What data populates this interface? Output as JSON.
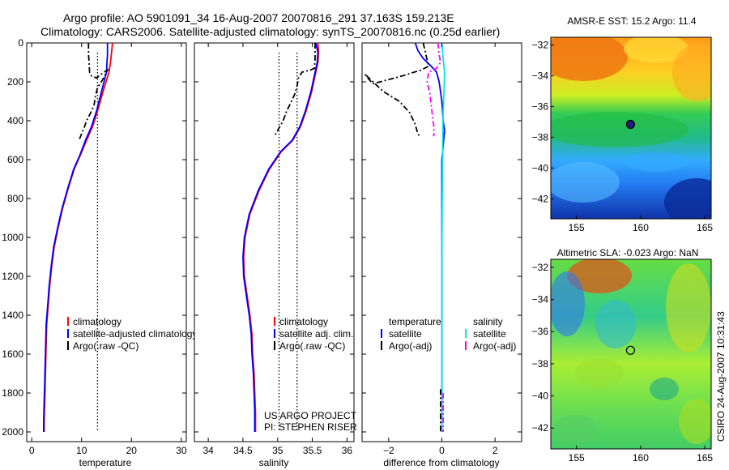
{
  "figure": {
    "title_line1": "Argo profile: AO 5901091_34 16-Aug-2007 20070816_291 37.163S 159.213E",
    "title_line2": "Climatology: CARS2006. Satellite-adjusted climatology: synTS_20070816.nc (0.25d earlier)",
    "side_label": "CSIRO 24-Aug-2007 10:31:43",
    "project_line1": "US ARGO PROJECT",
    "project_line2": "PI: STEPHEN RISER"
  },
  "colors": {
    "climatology": "#ff0000",
    "satellite": "#0000ff",
    "argo": "#000000",
    "sat_salinity": "#00e5ee",
    "argo_salinity": "#ff00ff"
  },
  "chart_data": [
    {
      "type": "line",
      "name": "temperature-profile",
      "xlabel": "temperature",
      "xlim": [
        -1,
        31
      ],
      "ylim": [
        2050,
        0
      ],
      "xticks": [
        0,
        10,
        20,
        30
      ],
      "yticks": [
        0,
        200,
        400,
        600,
        800,
        1000,
        1200,
        1400,
        1600,
        1800,
        2000
      ],
      "legend": [
        "climatology",
        "satellite-adjusted climatology",
        "Argo(.raw -QC)"
      ],
      "reference_line_x": 13.2,
      "series": [
        {
          "name": "climatology",
          "style": "solid",
          "color": "#ff0000",
          "points": [
            [
              16.2,
              0
            ],
            [
              16.0,
              50
            ],
            [
              15.8,
              100
            ],
            [
              15.5,
              150
            ],
            [
              14.3,
              250
            ],
            [
              13.2,
              350
            ],
            [
              12.2,
              430
            ],
            [
              11.0,
              500
            ],
            [
              9.7,
              580
            ],
            [
              8.5,
              650
            ],
            [
              7.3,
              750
            ],
            [
              6.2,
              850
            ],
            [
              5.3,
              950
            ],
            [
              4.5,
              1050
            ],
            [
              4.0,
              1150
            ],
            [
              3.6,
              1250
            ],
            [
              3.3,
              1350
            ],
            [
              3.0,
              1450
            ],
            [
              2.9,
              1550
            ],
            [
              2.8,
              1650
            ],
            [
              2.7,
              1750
            ],
            [
              2.6,
              1850
            ],
            [
              2.5,
              1950
            ],
            [
              2.5,
              2000
            ]
          ]
        },
        {
          "name": "satellite-adjusted climatology",
          "style": "solid",
          "color": "#0000ff",
          "points": [
            [
              15.2,
              0
            ],
            [
              15.2,
              60
            ],
            [
              15.1,
              100
            ],
            [
              15.0,
              150
            ],
            [
              14.0,
              250
            ],
            [
              13.0,
              350
            ],
            [
              12.0,
              430
            ],
            [
              10.8,
              500
            ],
            [
              9.6,
              580
            ],
            [
              8.4,
              650
            ],
            [
              7.2,
              750
            ],
            [
              6.1,
              850
            ],
            [
              5.2,
              950
            ],
            [
              4.4,
              1050
            ],
            [
              3.9,
              1150
            ],
            [
              3.5,
              1250
            ],
            [
              3.2,
              1350
            ],
            [
              2.9,
              1450
            ],
            [
              2.8,
              1550
            ],
            [
              2.7,
              1650
            ],
            [
              2.6,
              1750
            ],
            [
              2.5,
              1850
            ],
            [
              2.4,
              1950
            ],
            [
              2.4,
              2000
            ]
          ]
        },
        {
          "name": "Argo(.raw -QC)",
          "style": "dashdot",
          "color": "#000000",
          "points": [
            [
              11.4,
              0
            ],
            [
              11.4,
              60
            ],
            [
              11.5,
              100
            ],
            [
              11.6,
              150
            ],
            [
              12.0,
              170
            ],
            [
              13.0,
              180
            ],
            [
              14.5,
              150
            ],
            [
              15.2,
              140
            ],
            [
              14.2,
              190
            ],
            [
              13.2,
              230
            ],
            [
              12.8,
              270
            ],
            [
              12.5,
              320
            ],
            [
              11.8,
              360
            ],
            [
              11.0,
              400
            ],
            [
              10.6,
              430
            ],
            [
              9.8,
              480
            ],
            [
              9.5,
              500
            ]
          ]
        }
      ]
    },
    {
      "type": "line",
      "name": "salinity-profile",
      "xlabel": "salinity",
      "xlim": [
        33.8,
        36.1
      ],
      "ylim": [
        2050,
        0
      ],
      "xticks": [
        34,
        34.5,
        35,
        35.5,
        36
      ],
      "legend": [
        "climatology",
        "satellite adj. clim.",
        "Argo(.raw -QC)"
      ],
      "reference_lines_x": [
        35.02,
        35.28
      ],
      "series": [
        {
          "name": "climatology",
          "style": "solid",
          "color": "#ff0000",
          "points": [
            [
              35.58,
              0
            ],
            [
              35.59,
              50
            ],
            [
              35.58,
              100
            ],
            [
              35.55,
              150
            ],
            [
              35.49,
              250
            ],
            [
              35.41,
              350
            ],
            [
              35.33,
              430
            ],
            [
              35.22,
              500
            ],
            [
              35.05,
              560
            ],
            [
              34.88,
              650
            ],
            [
              34.73,
              760
            ],
            [
              34.6,
              880
            ],
            [
              34.53,
              1000
            ],
            [
              34.51,
              1100
            ],
            [
              34.52,
              1200
            ],
            [
              34.56,
              1300
            ],
            [
              34.6,
              1400
            ],
            [
              34.63,
              1500
            ],
            [
              34.64,
              1600
            ],
            [
              34.66,
              1700
            ],
            [
              34.67,
              1800
            ],
            [
              34.68,
              1900
            ],
            [
              34.68,
              2000
            ]
          ]
        },
        {
          "name": "satellite adj. clim.",
          "style": "solid",
          "color": "#0000ff",
          "points": [
            [
              35.55,
              0
            ],
            [
              35.58,
              50
            ],
            [
              35.57,
              100
            ],
            [
              35.54,
              150
            ],
            [
              35.48,
              250
            ],
            [
              35.4,
              350
            ],
            [
              35.32,
              430
            ],
            [
              35.21,
              500
            ],
            [
              35.04,
              560
            ],
            [
              34.87,
              650
            ],
            [
              34.72,
              760
            ],
            [
              34.59,
              880
            ],
            [
              34.52,
              1000
            ],
            [
              34.5,
              1100
            ],
            [
              34.51,
              1200
            ],
            [
              34.55,
              1300
            ],
            [
              34.59,
              1400
            ],
            [
              34.62,
              1500
            ],
            [
              34.63,
              1600
            ],
            [
              34.65,
              1700
            ],
            [
              34.66,
              1800
            ],
            [
              34.67,
              1900
            ],
            [
              34.67,
              2000
            ]
          ]
        },
        {
          "name": "Argo(.raw -QC)",
          "style": "dashdot",
          "color": "#000000",
          "points": [
            [
              35.54,
              0
            ],
            [
              35.54,
              80
            ],
            [
              35.53,
              130
            ],
            [
              35.47,
              140
            ],
            [
              35.35,
              150
            ],
            [
              35.3,
              180
            ],
            [
              35.28,
              220
            ],
            [
              35.25,
              260
            ],
            [
              35.2,
              300
            ],
            [
              35.13,
              350
            ],
            [
              35.08,
              400
            ],
            [
              35.0,
              450
            ],
            [
              34.95,
              480
            ]
          ]
        }
      ]
    },
    {
      "type": "line",
      "name": "difference-from-climatology",
      "xlabel": "difference from climatology",
      "xlim": [
        -3,
        3
      ],
      "ylim": [
        2050,
        0
      ],
      "xticks": [
        -2,
        0,
        2
      ],
      "legend_left_title": "temperature",
      "legend_right_title": "salinity",
      "legend_left": [
        "satellite",
        "Argo(-adj)"
      ],
      "legend_right": [
        "satellite",
        "Argo(-adj)"
      ],
      "series": [
        {
          "name": "temperature satellite",
          "style": "solid",
          "color": "#0000ff",
          "points": [
            [
              -1.0,
              0
            ],
            [
              -0.9,
              40
            ],
            [
              -0.7,
              80
            ],
            [
              -0.4,
              120
            ],
            [
              -0.2,
              150
            ],
            [
              -0.1,
              200
            ],
            [
              0.0,
              300
            ],
            [
              0.05,
              400
            ],
            [
              0.1,
              450
            ],
            [
              0.0,
              600
            ],
            [
              0.0,
              800
            ],
            [
              0.0,
              1000
            ],
            [
              0.0,
              1200
            ],
            [
              0.0,
              1400
            ],
            [
              0.0,
              1600
            ],
            [
              0.0,
              1800
            ],
            [
              0.0,
              2000
            ]
          ]
        },
        {
          "name": "temperature Argo(-adj)",
          "style": "dashdot",
          "color": "#000000",
          "points": [
            [
              -0.7,
              0
            ],
            [
              -0.6,
              60
            ],
            [
              -0.5,
              120
            ],
            [
              -0.8,
              140
            ],
            [
              -1.5,
              170
            ],
            [
              -2.6,
              210
            ],
            [
              -2.9,
              160
            ],
            [
              -2.2,
              250
            ],
            [
              -1.6,
              300
            ],
            [
              -1.2,
              360
            ],
            [
              -1.0,
              420
            ],
            [
              -0.9,
              470
            ],
            [
              -0.8,
              480
            ]
          ]
        },
        {
          "name": "salinity satellite",
          "style": "solid",
          "color": "#00e5ee",
          "points": [
            [
              0.0,
              0
            ],
            [
              0.05,
              80
            ],
            [
              0.1,
              150
            ],
            [
              0.08,
              250
            ],
            [
              0.05,
              350
            ],
            [
              0.03,
              500
            ],
            [
              0.02,
              700
            ],
            [
              0.01,
              900
            ],
            [
              0.0,
              1100
            ],
            [
              0.0,
              1300
            ],
            [
              0.0,
              1500
            ],
            [
              0.0,
              1700
            ],
            [
              0.0,
              1900
            ],
            [
              0.0,
              2000
            ]
          ]
        },
        {
          "name": "salinity Argo(-adj)",
          "style": "dashdot",
          "color": "#ff00ff",
          "points": [
            [
              -0.15,
              0
            ],
            [
              -0.1,
              60
            ],
            [
              -0.05,
              100
            ],
            [
              -0.2,
              130
            ],
            [
              -0.5,
              150
            ],
            [
              -0.55,
              200
            ],
            [
              -0.45,
              260
            ],
            [
              -0.4,
              320
            ],
            [
              -0.35,
              380
            ],
            [
              -0.3,
              430
            ],
            [
              -0.3,
              480
            ]
          ]
        },
        {
          "name": "temperature Argo deep",
          "style": "dashdot",
          "color": "#000000",
          "points": [
            [
              -0.05,
              1780
            ],
            [
              -0.05,
              2000
            ]
          ]
        },
        {
          "name": "salinity Argo deep",
          "style": "dashdot",
          "color": "#ff00ff",
          "points": [
            [
              0.05,
              1800
            ],
            [
              0.05,
              2000
            ]
          ]
        }
      ]
    },
    {
      "type": "heatmap",
      "name": "amsr-sst-map",
      "title": "AMSR-E SST: 15.2 Argo: 11.4",
      "xlim": [
        153,
        165.5
      ],
      "ylim": [
        -43.3,
        -31.5
      ],
      "xticks": [
        155,
        160,
        165
      ],
      "yticks": [
        -32,
        -34,
        -36,
        -38,
        -40,
        -42
      ],
      "marker": {
        "lon": 159.213,
        "lat": -37.163,
        "filled": true
      }
    },
    {
      "type": "heatmap",
      "name": "altimetric-sla-map",
      "title": "Altimetric SLA: -0.023 Argo: NaN",
      "xlim": [
        153,
        165.5
      ],
      "ylim": [
        -43.3,
        -31.5
      ],
      "xticks": [
        155,
        160,
        165
      ],
      "yticks": [
        -32,
        -34,
        -36,
        -38,
        -40,
        -42
      ],
      "marker": {
        "lon": 159.213,
        "lat": -37.163,
        "filled": false
      }
    }
  ]
}
